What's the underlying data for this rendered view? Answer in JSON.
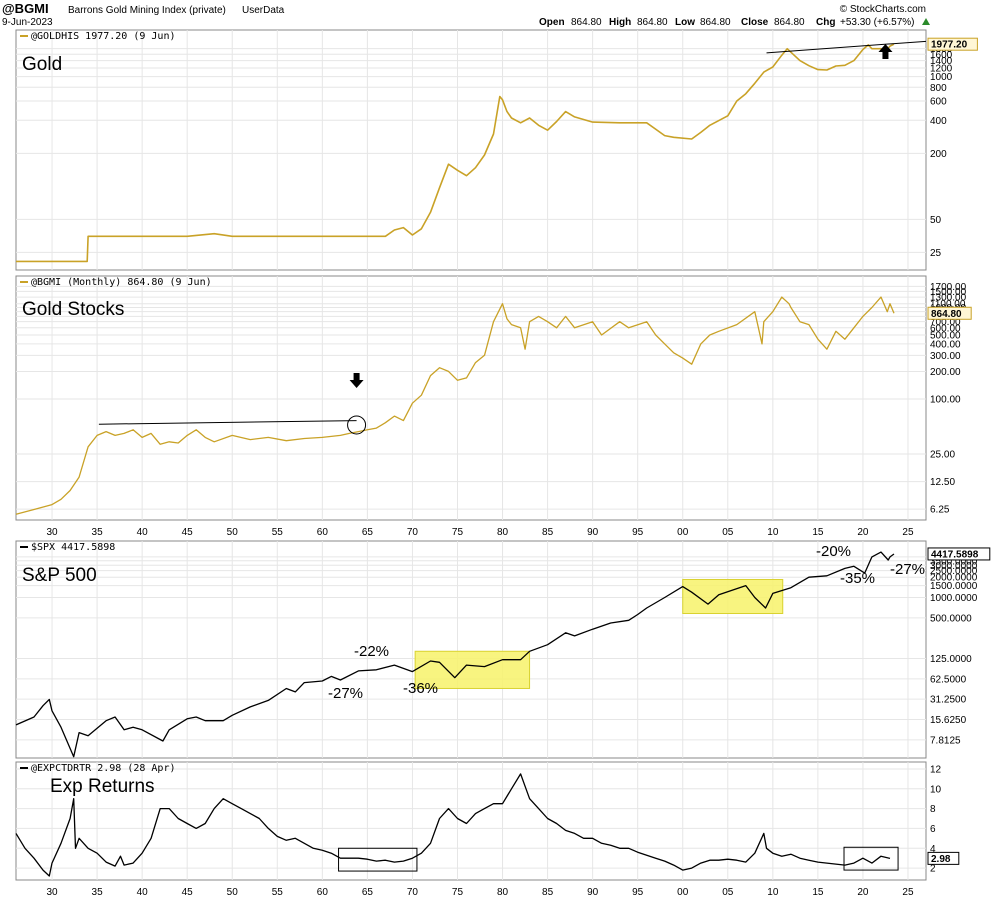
{
  "header": {
    "symbol": "@BGMI",
    "name": "Barrons Gold Mining Index (private)",
    "userdata": "UserData",
    "date": "9-Jun-2023",
    "ohlc": {
      "open_label": "Open",
      "open": "864.80",
      "high_label": "High",
      "high": "864.80",
      "low_label": "Low",
      "low": "864.80",
      "close_label": "Close",
      "close": "864.80",
      "chg_label": "Chg",
      "chg": "+53.30 (+6.57%)"
    },
    "source": "© StockCharts.com"
  },
  "colors": {
    "gold": "#c9a227",
    "black": "#000000",
    "highlight": "#f7f26a",
    "grid": "#e6e6e6"
  },
  "chart_data": [
    {
      "type": "line",
      "panel": "gold",
      "name_label": "Gold",
      "legend": "@GOLDHIS 1977.20 (9 Jun)",
      "last_value": "1977.20",
      "yscale": "log",
      "ylim": [
        18,
        2300
      ],
      "yticks": [
        "1800",
        "1600",
        "1400",
        "1200",
        "1000",
        "800",
        "600",
        "400",
        "200",
        "50",
        "25"
      ],
      "xlim": [
        1926,
        2027
      ],
      "x": [
        1926,
        1930,
        1930.01,
        1933.9,
        1934,
        1940,
        1945,
        1948,
        1950,
        1955,
        1960,
        1965,
        1967,
        1968,
        1969,
        1970,
        1971,
        1972,
        1973,
        1974,
        1975,
        1976,
        1977,
        1978,
        1979,
        1979.7,
        1980,
        1980.5,
        1981,
        1982,
        1983,
        1984,
        1985,
        1986,
        1987,
        1988,
        1990,
        1993,
        1996,
        1998,
        1999,
        2001,
        2002,
        2003,
        2005,
        2006,
        2007,
        2008,
        2009,
        2010,
        2011,
        2011.6,
        2012,
        2013,
        2014,
        2015,
        2016,
        2017,
        2018,
        2019,
        2020,
        2020.6,
        2021,
        2022,
        2022.5,
        2023,
        2023.45
      ],
      "values": [
        20.67,
        20.67,
        20.67,
        20.67,
        35,
        35,
        35,
        37,
        35,
        35,
        35,
        35,
        35,
        40,
        42,
        36,
        41,
        58,
        97,
        159,
        140,
        125,
        148,
        193,
        300,
        660,
        615,
        480,
        420,
        380,
        420,
        360,
        325,
        390,
        480,
        430,
        385,
        380,
        380,
        290,
        280,
        270,
        310,
        360,
        440,
        600,
        700,
        870,
        1100,
        1225,
        1570,
        1800,
        1670,
        1400,
        1260,
        1160,
        1150,
        1250,
        1270,
        1400,
        1770,
        1950,
        1800,
        1800,
        1700,
        1900,
        1977
      ]
    },
    {
      "type": "line",
      "panel": "gold-stocks",
      "name_label": "Gold Stocks",
      "legend": "@BGMI (Monthly) 864.80 (9 Jun)",
      "last_value": "864.80",
      "yscale": "log",
      "ylim": [
        5,
        1900
      ],
      "yticks": [
        "1700.00",
        "1500.00",
        "1300.00",
        "1100.00",
        "1000.00",
        "900.00",
        "800.00",
        "700.00",
        "600.00",
        "500.00",
        "400.00",
        "300.00",
        "200.00",
        "100.00",
        "25.00",
        "12.50",
        "6.25"
      ],
      "xlim": [
        1926,
        2027
      ],
      "x": [
        1926,
        1928,
        1930,
        1931,
        1932,
        1933,
        1934,
        1935,
        1936,
        1937,
        1938,
        1939,
        1940,
        1941,
        1942,
        1943,
        1944,
        1945,
        1946,
        1947,
        1948,
        1950,
        1952,
        1954,
        1956,
        1958,
        1960,
        1962,
        1963,
        1964,
        1965,
        1966,
        1967,
        1968,
        1969,
        1970,
        1971,
        1972,
        1973,
        1974,
        1975,
        1976,
        1977,
        1978,
        1979,
        1980,
        1980.5,
        1981,
        1982,
        1982.5,
        1983,
        1984,
        1985,
        1986,
        1987,
        1988,
        1990,
        1991,
        1993,
        1994,
        1996,
        1997,
        1998,
        1999,
        2000,
        2001,
        2002,
        2003,
        2004,
        2006,
        2008,
        2008.8,
        2009,
        2010,
        2011,
        2011.8,
        2012,
        2013,
        2014,
        2015,
        2016,
        2017,
        2018,
        2019,
        2020,
        2021,
        2022,
        2022.7,
        2023,
        2023.45
      ],
      "values": [
        5.5,
        6.2,
        7,
        8,
        10,
        14,
        30,
        40,
        44,
        40,
        42,
        46,
        38,
        42,
        32,
        34,
        33,
        40,
        46,
        38,
        34,
        40,
        36,
        38,
        35,
        37,
        38,
        40,
        42,
        44,
        46,
        48,
        55,
        65,
        58,
        90,
        110,
        180,
        220,
        200,
        160,
        170,
        250,
        300,
        700,
        1100,
        750,
        650,
        600,
        350,
        700,
        800,
        700,
        600,
        800,
        600,
        700,
        500,
        700,
        600,
        700,
        500,
        400,
        320,
        280,
        240,
        400,
        500,
        550,
        650,
        900,
        400,
        700,
        900,
        1300,
        1100,
        1000,
        700,
        650,
        450,
        350,
        550,
        450,
        600,
        800,
        1000,
        1300,
        900,
        1100,
        864.8
      ]
    },
    {
      "type": "line",
      "panel": "sp500",
      "name_label": "S&P 500",
      "legend": "$SPX 4417.5898",
      "last_value": "4417.5898",
      "yscale": "log",
      "ylim": [
        4.5,
        5600
      ],
      "yticks": [
        "4000.0000",
        "3500.0000",
        "3000.0000",
        "2500.0000",
        "2000.0000",
        "1500.0000",
        "1000.0000",
        "500.0000",
        "125.0000",
        "62.5000",
        "31.2500",
        "15.6250",
        "7.8125"
      ],
      "xlim": [
        1926,
        2027
      ],
      "x": [
        1926,
        1928,
        1929,
        1929.7,
        1930,
        1931,
        1932.4,
        1933,
        1934,
        1936,
        1937,
        1938,
        1939,
        1940,
        1942.3,
        1943,
        1945,
        1946,
        1947,
        1949,
        1950,
        1952,
        1954,
        1956,
        1957,
        1958,
        1960,
        1961,
        1962,
        1964,
        1966,
        1968,
        1970,
        1972,
        1973,
        1974.7,
        1976,
        1978,
        1980,
        1982,
        1983,
        1985,
        1987,
        1988,
        1990,
        1992,
        1994,
        1995,
        1996,
        1998,
        2000,
        2001,
        2002.8,
        2004,
        2007,
        2008,
        2009.2,
        2010,
        2012,
        2014,
        2016,
        2018,
        2019,
        2020.2,
        2021,
        2022,
        2022.8,
        2023,
        2023.45
      ],
      "values": [
        13,
        17,
        25,
        31,
        21,
        12,
        4.4,
        10,
        9,
        15,
        17,
        11,
        12,
        11,
        7.5,
        11,
        16,
        17,
        15,
        15,
        18,
        24,
        30,
        45,
        40,
        55,
        58,
        68,
        60,
        82,
        85,
        100,
        80,
        115,
        110,
        65,
        100,
        95,
        120,
        120,
        160,
        200,
        300,
        270,
        340,
        420,
        460,
        560,
        700,
        1000,
        1450,
        1200,
        800,
        1100,
        1500,
        1000,
        700,
        1150,
        1400,
        2000,
        2100,
        2700,
        2900,
        2300,
        4000,
        4700,
        3600,
        4000,
        4417
      ]
    },
    {
      "type": "line",
      "panel": "exp-returns",
      "name_label": "Exp Returns",
      "legend": "@EXPCTDRTR 2.98 (28 Apr)",
      "last_value": "2.98",
      "yscale": "linear",
      "ylim": [
        1,
        12.5
      ],
      "yticks": [
        "12",
        "10",
        "8",
        "6",
        "4",
        "2"
      ],
      "xlabels": [
        "30",
        "35",
        "40",
        "45",
        "50",
        "55",
        "60",
        "65",
        "70",
        "75",
        "80",
        "85",
        "90",
        "95",
        "00",
        "05",
        "10",
        "15",
        "20",
        "25"
      ],
      "xlim": [
        1926,
        2027
      ],
      "x": [
        1926,
        1927,
        1928,
        1929,
        1929.7,
        1930,
        1931,
        1932,
        1932.4,
        1932.6,
        1933,
        1934,
        1935,
        1936,
        1937,
        1937.6,
        1938,
        1939,
        1940,
        1941,
        1942,
        1943,
        1944,
        1945,
        1946,
        1947,
        1948,
        1949,
        1950,
        1951,
        1952,
        1953,
        1954,
        1955,
        1956,
        1957,
        1958,
        1959,
        1960,
        1961,
        1962,
        1963,
        1964,
        1965,
        1966,
        1967,
        1968,
        1969,
        1970,
        1971,
        1972,
        1973,
        1974,
        1975,
        1976,
        1977,
        1978,
        1979,
        1980,
        1981,
        1982,
        1982.6,
        1983,
        1984,
        1985,
        1986,
        1987,
        1988,
        1989,
        1990,
        1991,
        1992,
        1993,
        1994,
        1995,
        1996,
        1997,
        1998,
        1999,
        2000,
        2001,
        2002,
        2003,
        2004,
        2005,
        2006,
        2007,
        2008,
        2009,
        2009.3,
        2010,
        2011,
        2012,
        2013,
        2014,
        2015,
        2016,
        2017,
        2018,
        2019,
        2020,
        2021,
        2022,
        2023
      ],
      "values": [
        5.5,
        4,
        3,
        1.8,
        1.2,
        2.5,
        4.5,
        7,
        9,
        4,
        5,
        4,
        3.5,
        2.6,
        2.2,
        3.2,
        2.3,
        2.5,
        3.5,
        5,
        8,
        8,
        7,
        6.5,
        6,
        6.5,
        8,
        9,
        8.5,
        8,
        7.5,
        7,
        6,
        5.2,
        4.8,
        5,
        4.5,
        4,
        3.8,
        3.5,
        3,
        3,
        3,
        2.9,
        2.7,
        2.8,
        2.6,
        2.7,
        3,
        3.5,
        4.5,
        7,
        8,
        7,
        6.5,
        7.5,
        8,
        8.5,
        8.5,
        10,
        11.5,
        10,
        9,
        8,
        7,
        6.5,
        5.8,
        5.5,
        5,
        5,
        4.5,
        4.3,
        4,
        4,
        3.6,
        3.3,
        3,
        2.7,
        2.3,
        1.8,
        2,
        2.5,
        2.8,
        2.8,
        2.9,
        2.8,
        2.6,
        3.5,
        5.5,
        4,
        3.5,
        3.2,
        3.4,
        3,
        2.8,
        2.6,
        2.5,
        2.4,
        2.3,
        2.5,
        3,
        2.5,
        3.2,
        2.98
      ]
    }
  ],
  "annotations": {
    "sp_pcts": [
      "-22%",
      "-27%",
      "-36%",
      "-20%",
      "-35%",
      "-27%"
    ]
  }
}
